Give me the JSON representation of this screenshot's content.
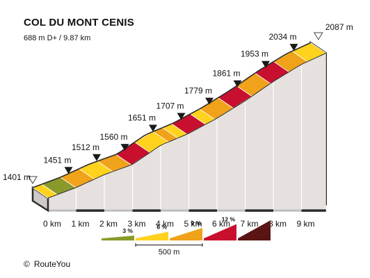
{
  "header": {
    "title": "COL DU MONT CENIS",
    "subtitle": "688 m D+ / 9.87 km"
  },
  "footer": {
    "copyright_symbol": "©",
    "credit": "RouteYou"
  },
  "colors": {
    "gradient_3": "#8a9a2a",
    "gradient_6": "#ffd21e",
    "gradient_9": "#f0a21a",
    "gradient_12": "#c8102e",
    "gradient_max": "#5a1414",
    "face": "#e6e1df",
    "side_dark": "#2b2b2b"
  },
  "chart_data": {
    "type": "area",
    "title": "COL DU MONT CENIS",
    "subtitle": "688 m D+ / 9.87 km",
    "distance_km": 9.87,
    "elevation_gain_m": 688,
    "km_labels": [
      "0 km",
      "1 km",
      "2 km",
      "3 km",
      "4 km",
      "5 km",
      "6 km",
      "7 km",
      "8 km",
      "9 km"
    ],
    "profile": [
      {
        "km": 0,
        "elev": 1401,
        "label": "1401 m",
        "marker": "start"
      },
      {
        "km": 1,
        "elev": 1451,
        "label": "1451 m",
        "marker": "km"
      },
      {
        "km": 2,
        "elev": 1512,
        "label": "1512 m",
        "marker": "km"
      },
      {
        "km": 3,
        "elev": 1560,
        "label": "1560 m",
        "marker": "km"
      },
      {
        "km": 4,
        "elev": 1651,
        "label": "1651 m",
        "marker": "km"
      },
      {
        "km": 5,
        "elev": 1707,
        "label": "1707 m",
        "marker": "km"
      },
      {
        "km": 6,
        "elev": 1779,
        "label": "1779 m",
        "marker": "km"
      },
      {
        "km": 7,
        "elev": 1861,
        "label": "1861 m",
        "marker": "km"
      },
      {
        "km": 8,
        "elev": 1953,
        "label": "1953 m",
        "marker": "km"
      },
      {
        "km": 9,
        "elev": 2034,
        "label": "2034 m",
        "marker": "km"
      },
      {
        "km": 9.87,
        "elev": 2087,
        "label": "2087 m",
        "marker": "summit"
      }
    ],
    "segments": [
      {
        "from": 0.0,
        "to": 0.5,
        "cls": "6"
      },
      {
        "from": 0.5,
        "to": 1.5,
        "cls": "3"
      },
      {
        "from": 1.5,
        "to": 2.5,
        "cls": "9"
      },
      {
        "from": 2.5,
        "to": 3.5,
        "cls": "6"
      },
      {
        "from": 3.5,
        "to": 4.5,
        "cls": "9"
      },
      {
        "from": 4.5,
        "to": 5.5,
        "cls": "12"
      },
      {
        "from": 5.5,
        "to": 6.5,
        "cls": "6"
      },
      {
        "from": 6.5,
        "to": 7.0,
        "cls": "9"
      },
      {
        "from": 7.0,
        "to": 7.5,
        "cls": "6"
      },
      {
        "from": 7.5,
        "to": 8.5,
        "cls": "12"
      },
      {
        "from": 8.5,
        "to": 9.0,
        "cls": "6"
      },
      {
        "from": 9.0,
        "to": 10.0,
        "cls": "9"
      },
      {
        "from": 10.0,
        "to": 11.0,
        "cls": "12"
      },
      {
        "from": 11.0,
        "to": 12.0,
        "cls": "9"
      },
      {
        "from": 12.0,
        "to": 13.0,
        "cls": "12"
      },
      {
        "from": 13.0,
        "to": 14.0,
        "cls": "9"
      },
      {
        "from": 14.0,
        "to": 15.0,
        "cls": "6"
      }
    ],
    "legend": {
      "items": [
        {
          "label": "3 %",
          "cls": "3"
        },
        {
          "label": "6 %",
          "cls": "6"
        },
        {
          "label": "9 %",
          "cls": "9"
        },
        {
          "label": "12 %",
          "cls": "12"
        },
        {
          "label": "",
          "cls": "max"
        }
      ],
      "scale_label": "500 m"
    }
  }
}
